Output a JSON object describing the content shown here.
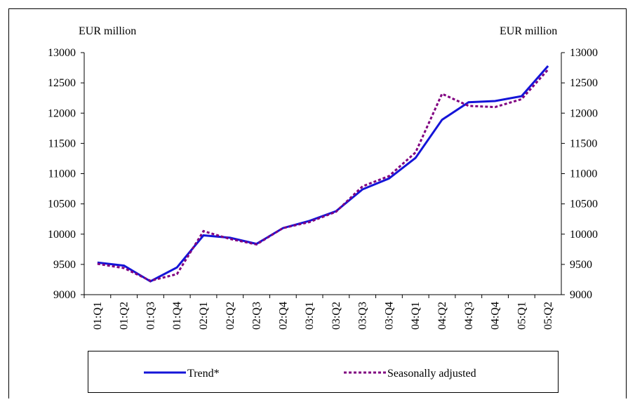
{
  "chart_data": {
    "type": "line",
    "y_label": "EUR million",
    "y2_label": "EUR million",
    "categories": [
      "01:Q1",
      "01:Q2",
      "01:Q3",
      "01:Q4",
      "02:Q1",
      "02:Q2",
      "02:Q3",
      "02:Q4",
      "03:Q1",
      "03:Q2",
      "03:Q3",
      "03:Q4",
      "04:Q1",
      "04:Q2",
      "04:Q3",
      "04:Q4",
      "05:Q1",
      "05:Q2"
    ],
    "series": [
      {
        "name": "Trend*",
        "color": "#1414d8",
        "dash": false,
        "values": [
          9530,
          9480,
          9220,
          9450,
          9980,
          9940,
          9840,
          10100,
          10220,
          10380,
          10740,
          10920,
          11260,
          11890,
          12180,
          12200,
          12280,
          12780
        ]
      },
      {
        "name": "Seasonally adjusted",
        "color": "#800080",
        "dash": true,
        "values": [
          9510,
          9440,
          9230,
          9340,
          10050,
          9920,
          9830,
          10100,
          10200,
          10370,
          10790,
          10960,
          11350,
          12320,
          12120,
          12100,
          12230,
          12720
        ]
      }
    ],
    "ylim": [
      9000,
      13000
    ],
    "yticks": [
      9000,
      9500,
      10000,
      10500,
      11000,
      11500,
      12000,
      12500,
      13000
    ],
    "y2lim": [
      9000,
      13000
    ],
    "y2ticks": [
      9000,
      9500,
      10000,
      10500,
      11000,
      11500,
      12000,
      12500,
      13000
    ],
    "legend": "bottom"
  }
}
